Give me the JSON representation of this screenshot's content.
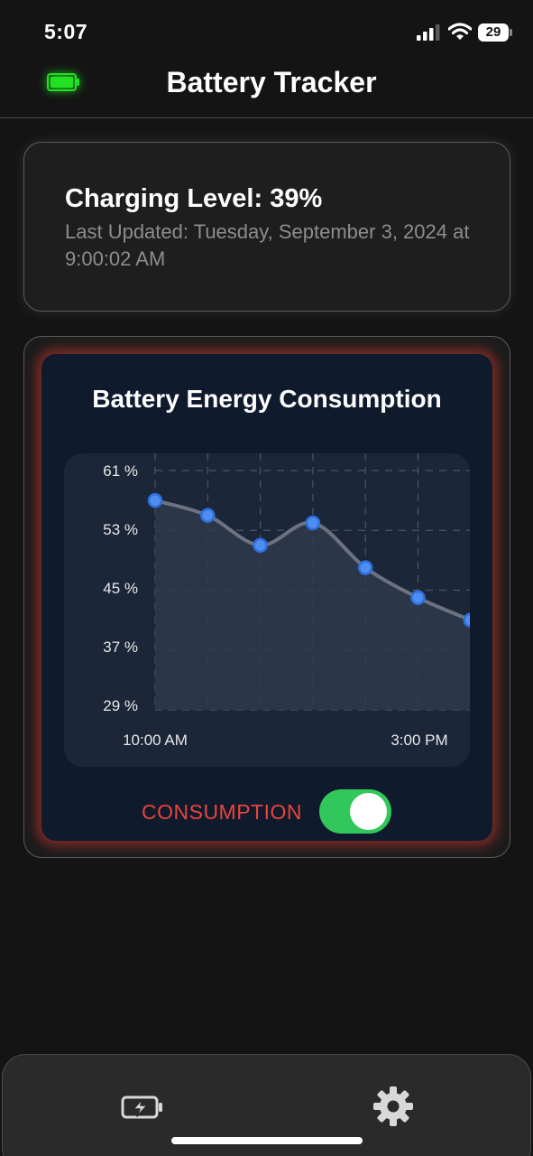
{
  "status_bar": {
    "time": "5:07",
    "battery_level": "29",
    "icons": [
      "signal-icon",
      "wifi-icon",
      "battery-icon"
    ]
  },
  "header": {
    "title": "Battery Tracker",
    "icon": "battery-charging-icon",
    "icon_color": "#22e022"
  },
  "level_card": {
    "title": "Charging Level: 39%",
    "last_updated": "Last Updated: Tuesday, September 3, 2024 at 9:00:02 AM"
  },
  "chart_card": {
    "title": "Battery Energy Consumption",
    "toggle_label": "CONSUMPTION",
    "toggle_on": true,
    "accent_color": "#e8453b",
    "toggle_color": "#32c75a"
  },
  "chart_data": {
    "type": "area",
    "title": "Battery Energy Consumption",
    "y_ticks": [
      "61 %",
      "53 %",
      "45 %",
      "37 %",
      "29 %"
    ],
    "x_tick_labels": [
      "10:00 AM",
      "3:00 PM"
    ],
    "ylim": [
      29,
      61
    ],
    "values": [
      57,
      55,
      51,
      54,
      48,
      44,
      41
    ],
    "grid": true,
    "line_color": "#6b7382",
    "point_color": "#4e8ef0"
  },
  "tab_bar": {
    "items": [
      {
        "name": "battery",
        "icon": "battery-charging-icon"
      },
      {
        "name": "settings",
        "icon": "gear-icon"
      }
    ]
  }
}
